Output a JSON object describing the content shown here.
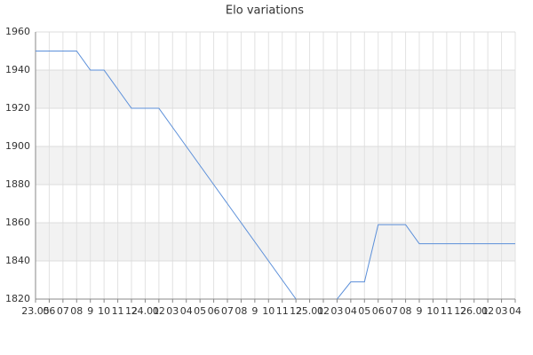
{
  "chart_data": {
    "type": "line",
    "title": "Elo variations",
    "categories": [
      "23.05",
      "06",
      "07",
      "08",
      "9",
      "10",
      "11",
      "12",
      "24.01",
      "02",
      "03",
      "04",
      "05",
      "06",
      "07",
      "08",
      "9",
      "10",
      "11",
      "12",
      "25.01",
      "02",
      "03",
      "04",
      "05",
      "06",
      "07",
      "08",
      "9",
      "10",
      "11",
      "12",
      "26.01",
      "02",
      "03",
      "04"
    ],
    "series": [
      {
        "name": "Elo",
        "color": "#5b8fd9",
        "values": [
          1950,
          1950,
          1950,
          1950,
          1940,
          1940,
          1930,
          1920,
          1920,
          1920,
          1910,
          1900,
          1890,
          1880,
          1870,
          1860,
          1850,
          1840,
          1830,
          1820,
          null,
          null,
          1820,
          1829,
          1829,
          1859,
          1859,
          1859,
          1849,
          1849,
          1849,
          1849,
          1849,
          1849,
          1849,
          1849
        ]
      }
    ],
    "ylim": [
      1820,
      1960
    ],
    "yticks": [
      1820,
      1840,
      1860,
      1880,
      1900,
      1920,
      1940,
      1960
    ],
    "grid": true
  }
}
